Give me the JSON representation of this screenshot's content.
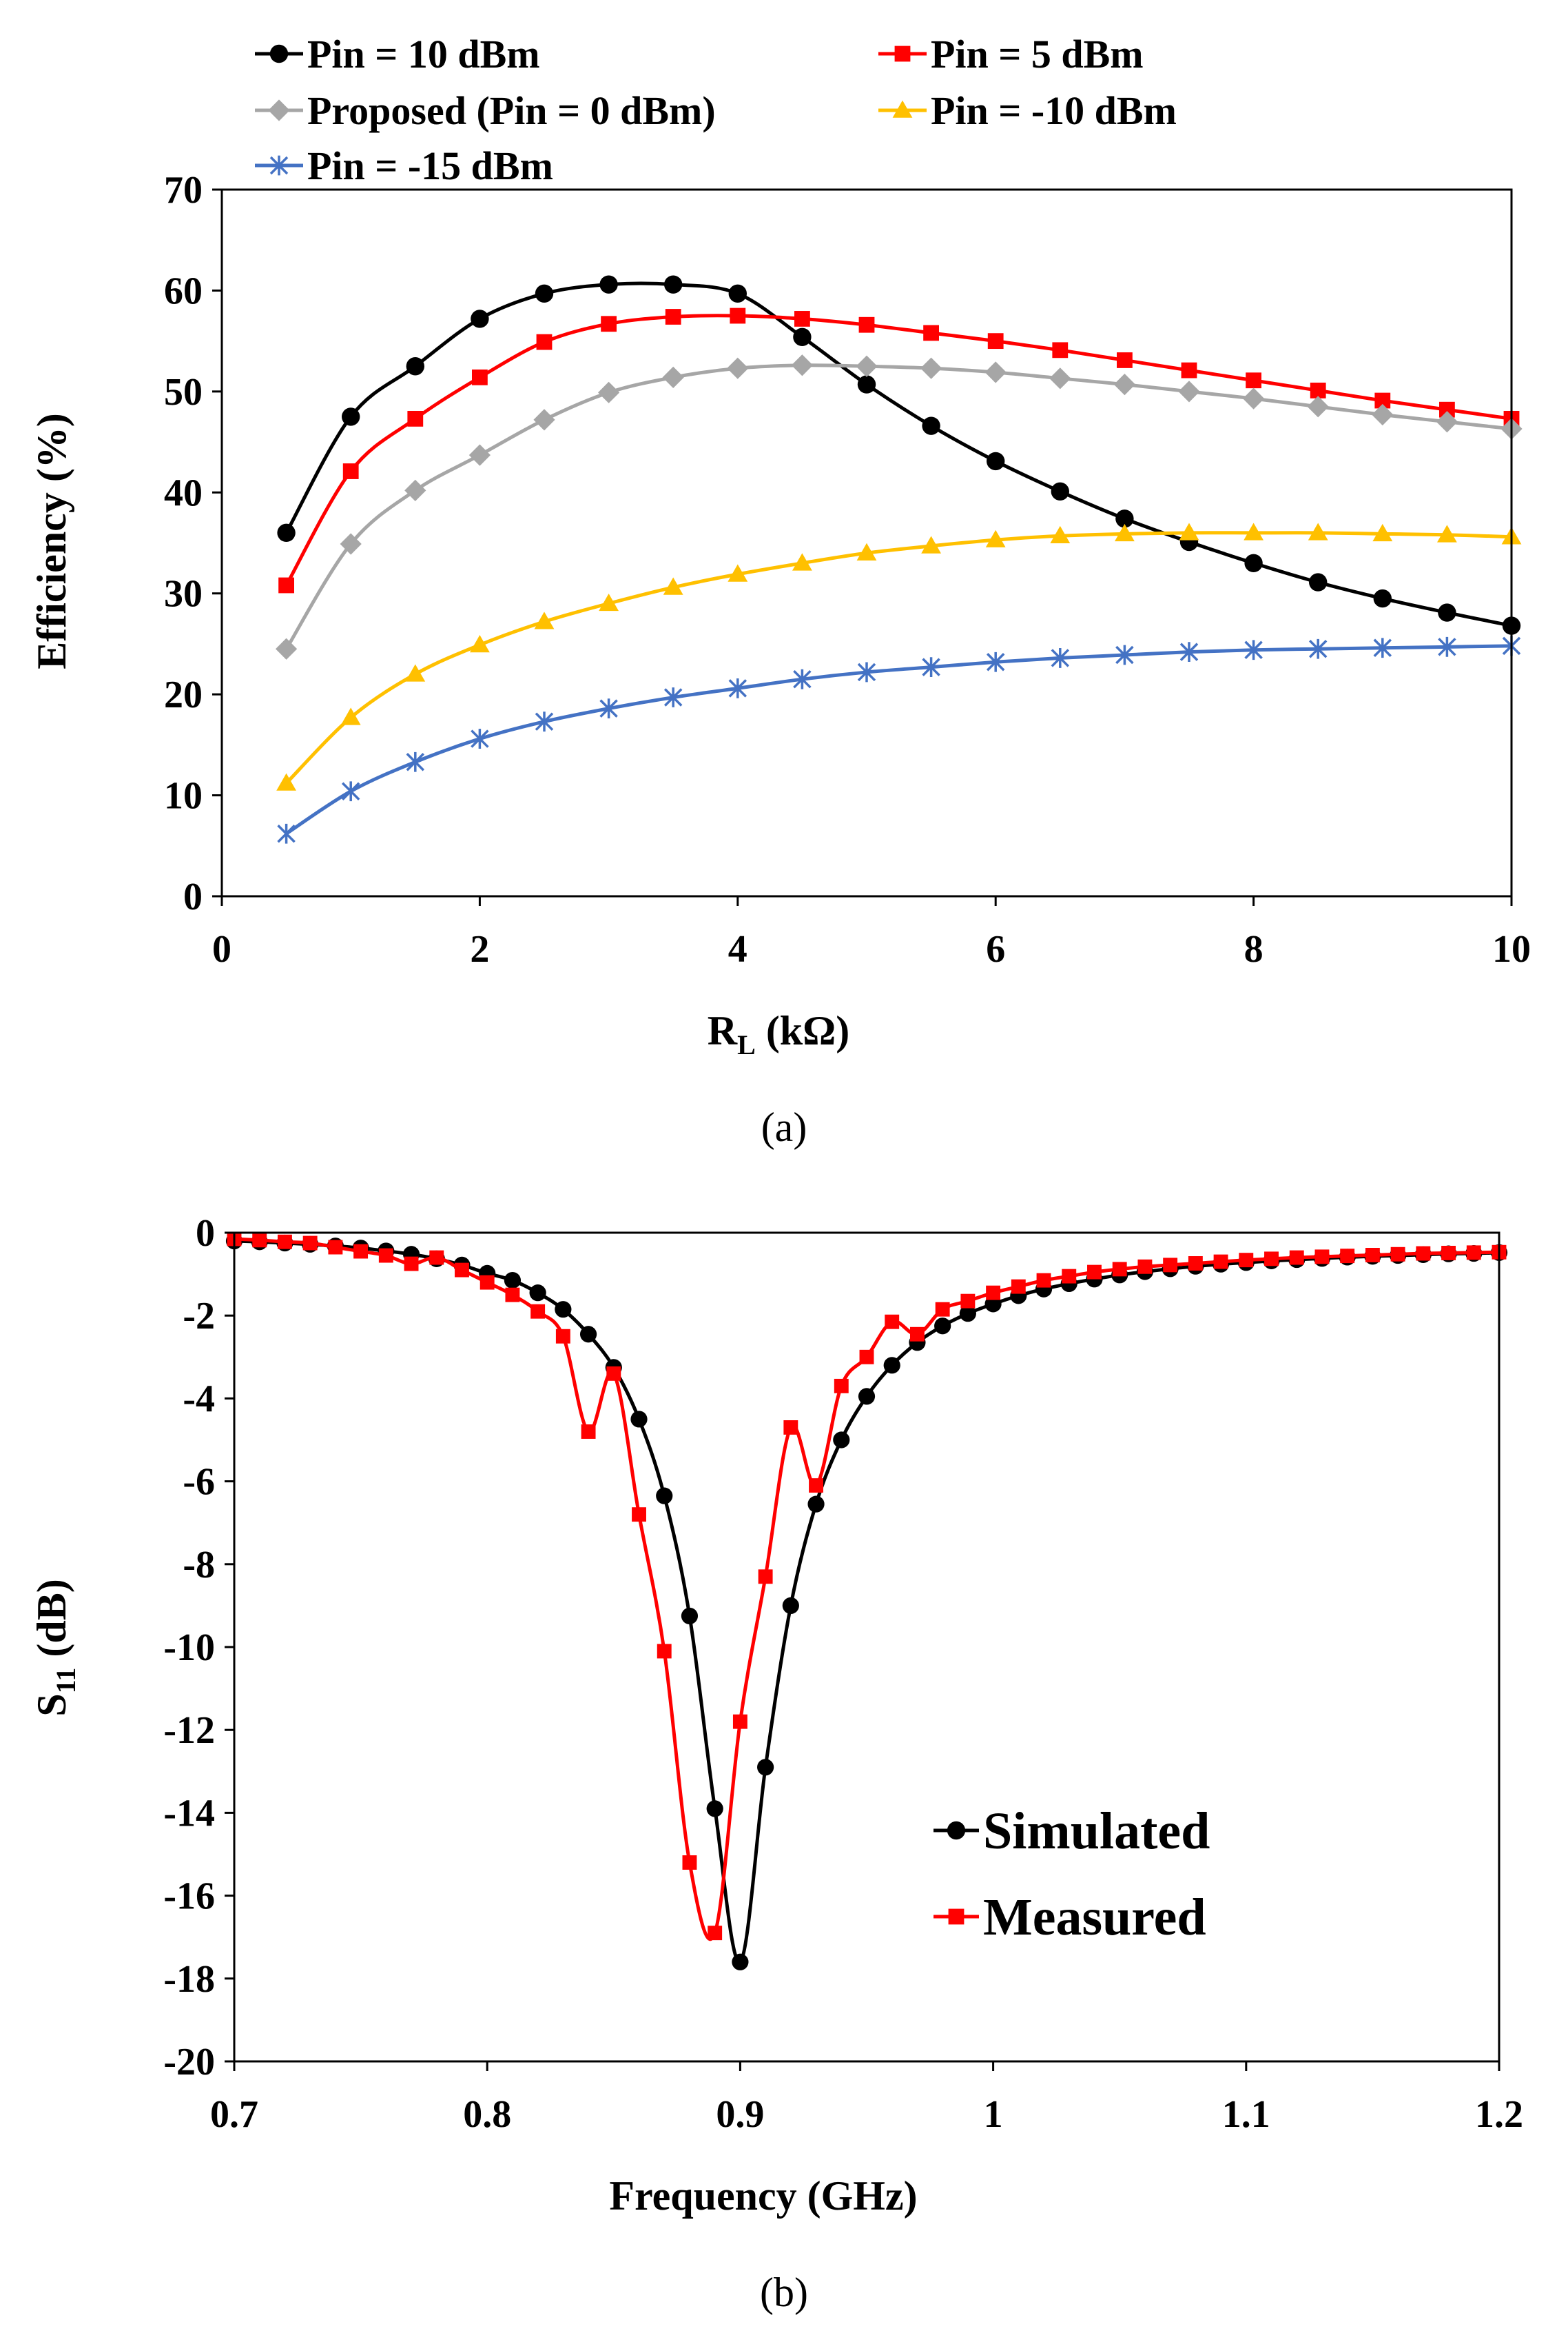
{
  "chart_data": [
    {
      "type": "line",
      "panel_label": "(a)",
      "xlabel_main": "R",
      "xlabel_sub": "L",
      "xlabel_unit": " (kΩ)",
      "ylabel": "Efficiency (%)",
      "xlim": [
        0,
        10
      ],
      "ylim": [
        0,
        70
      ],
      "xticks": [
        0,
        2,
        4,
        6,
        8,
        10
      ],
      "yticks": [
        0,
        10,
        20,
        30,
        40,
        50,
        60,
        70
      ],
      "legend_placement": "top",
      "grid": false,
      "x": [
        0.5,
        1,
        1.5,
        2,
        2.5,
        3,
        3.5,
        4,
        4.5,
        5,
        5.5,
        6,
        6.5,
        7,
        7.5,
        8,
        8.5,
        9,
        9.5,
        10
      ],
      "series": [
        {
          "name": "Pin = 10 dBm",
          "color": "#000000",
          "marker": "circle",
          "values": [
            36,
            47.5,
            52.5,
            57.2,
            59.7,
            60.6,
            60.6,
            59.7,
            55.4,
            50.7,
            46.6,
            43.1,
            40.1,
            37.4,
            35.1,
            33,
            31.1,
            29.5,
            28.1,
            26.8
          ]
        },
        {
          "name": "Pin = 5 dBm",
          "color": "#ff0000",
          "marker": "square",
          "values": [
            30.8,
            42.1,
            47.3,
            51.4,
            54.9,
            56.7,
            57.4,
            57.5,
            57.2,
            56.6,
            55.8,
            55,
            54.1,
            53.1,
            52.1,
            51.1,
            50.1,
            49.1,
            48.2,
            47.3
          ]
        },
        {
          "name": "Proposed (Pin = 0 dBm)",
          "color": "#a6a6a6",
          "marker": "diamond",
          "values": [
            24.5,
            34.9,
            40.2,
            43.7,
            47.2,
            49.9,
            51.4,
            52.3,
            52.6,
            52.5,
            52.3,
            51.9,
            51.3,
            50.7,
            50,
            49.3,
            48.5,
            47.7,
            47,
            46.3
          ]
        },
        {
          "name": "Pin = -10 dBm",
          "color": "#ffc000",
          "marker": "triangle",
          "values": [
            11.2,
            17.7,
            22,
            24.9,
            27.2,
            29,
            30.6,
            31.9,
            33,
            34,
            34.7,
            35.3,
            35.7,
            35.9,
            36,
            36,
            36,
            35.9,
            35.8,
            35.6
          ]
        },
        {
          "name": "Pin = -15 dBm",
          "color": "#4472c4",
          "marker": "asterisk",
          "values": [
            6.2,
            10.4,
            13.3,
            15.6,
            17.3,
            18.6,
            19.7,
            20.6,
            21.5,
            22.2,
            22.7,
            23.2,
            23.6,
            23.9,
            24.2,
            24.4,
            24.5,
            24.6,
            24.7,
            24.8
          ]
        }
      ]
    },
    {
      "type": "line",
      "panel_label": "(b)",
      "xlabel": "Frequency (GHz)",
      "ylabel_main": "S",
      "ylabel_sub": "11",
      "ylabel_unit": " (dB)",
      "xlim": [
        0.7,
        1.2
      ],
      "ylim": [
        -20,
        0
      ],
      "xticks": [
        "0.7",
        "0.8",
        "0.9",
        "1",
        "1.1",
        "1.2"
      ],
      "yticks": [
        0,
        -2,
        -4,
        -6,
        -8,
        -10,
        -12,
        -14,
        -16,
        -18,
        -20
      ],
      "legend_placement": "lower-right",
      "grid": false,
      "x": [
        0.7,
        0.71,
        0.72,
        0.73,
        0.74,
        0.75,
        0.76,
        0.77,
        0.78,
        0.79,
        0.8,
        0.81,
        0.82,
        0.83,
        0.84,
        0.85,
        0.86,
        0.87,
        0.88,
        0.89,
        0.9,
        0.91,
        0.92,
        0.93,
        0.94,
        0.95,
        0.96,
        0.97,
        0.98,
        0.99,
        1.0,
        1.01,
        1.02,
        1.03,
        1.04,
        1.05,
        1.06,
        1.07,
        1.08,
        1.09,
        1.1,
        1.11,
        1.12,
        1.13,
        1.14,
        1.15,
        1.16,
        1.17,
        1.18,
        1.19,
        1.2
      ],
      "series": [
        {
          "name": "Simulated",
          "color": "#000000",
          "marker": "circle",
          "values": [
            -0.2,
            -0.22,
            -0.25,
            -0.28,
            -0.32,
            -0.37,
            -0.44,
            -0.52,
            -0.63,
            -0.78,
            -0.98,
            -1.15,
            -1.45,
            -1.85,
            -2.45,
            -3.25,
            -4.5,
            -6.35,
            -9.25,
            -13.9,
            -17.6,
            -12.9,
            -9.0,
            -6.55,
            -5.0,
            -3.95,
            -3.2,
            -2.65,
            -2.25,
            -1.95,
            -1.72,
            -1.52,
            -1.36,
            -1.23,
            -1.12,
            -1.02,
            -0.94,
            -0.87,
            -0.81,
            -0.76,
            -0.72,
            -0.68,
            -0.65,
            -0.62,
            -0.59,
            -0.57,
            -0.55,
            -0.53,
            -0.51,
            -0.5,
            -0.48
          ]
        },
        {
          "name": "Measured",
          "color": "#ff0000",
          "marker": "square",
          "values": [
            -0.15,
            -0.18,
            -0.22,
            -0.25,
            -0.35,
            -0.45,
            -0.55,
            -0.75,
            -0.6,
            -0.9,
            -1.2,
            -1.5,
            -1.9,
            -2.5,
            -4.8,
            -3.4,
            -6.8,
            -10.1,
            -15.2,
            -16.9,
            -11.8,
            -8.3,
            -4.7,
            -6.1,
            -3.7,
            -3.0,
            -2.15,
            -2.45,
            -1.85,
            -1.65,
            -1.45,
            -1.3,
            -1.15,
            -1.05,
            -0.95,
            -0.88,
            -0.82,
            -0.78,
            -0.74,
            -0.7,
            -0.66,
            -0.63,
            -0.6,
            -0.58,
            -0.56,
            -0.54,
            -0.52,
            -0.5,
            -0.49,
            -0.48,
            -0.47
          ]
        }
      ]
    }
  ]
}
